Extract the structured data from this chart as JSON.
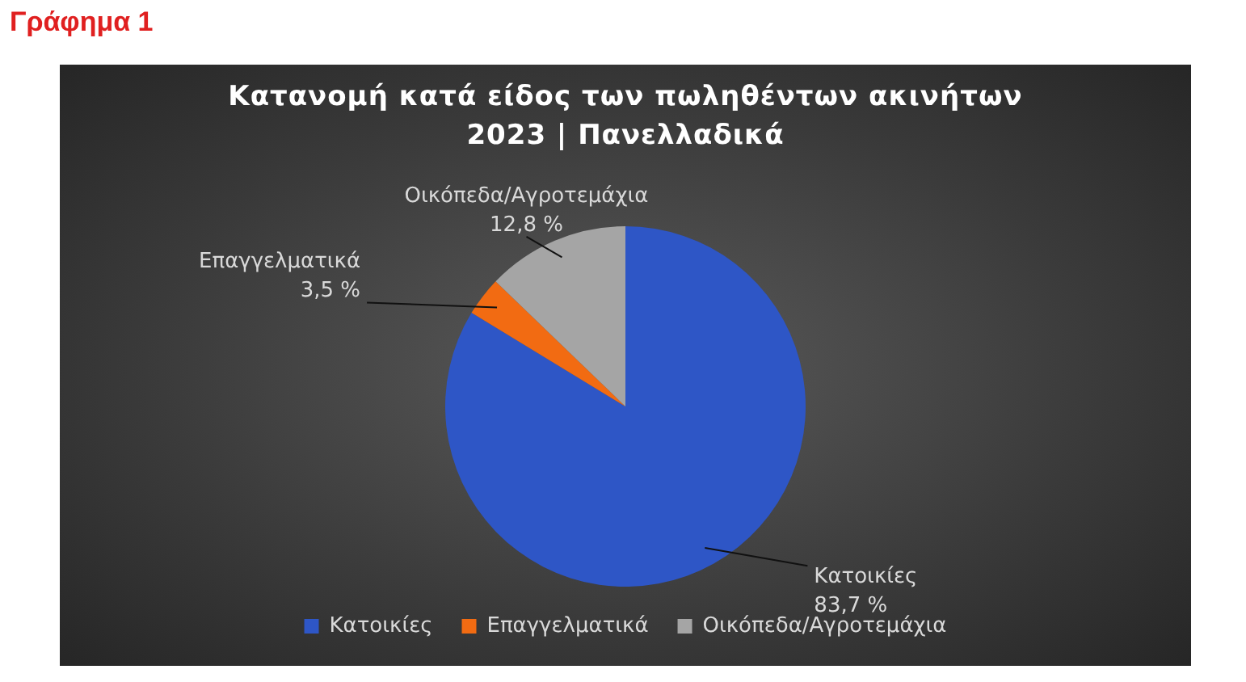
{
  "chart_data": {
    "type": "pie",
    "title": "Κατανομή κατά είδος των πωληθέντων ακινήτων 2023 | Πανελλαδικά",
    "annotations": [
      "Γράφημα 1"
    ],
    "categories": [
      "Κατοικίες",
      "Επαγγελματικά",
      "Οικόπεδα/Αγροτεμάχια"
    ],
    "values": [
      83.7,
      3.5,
      12.8
    ],
    "value_labels": [
      "83,7 %",
      "3,5 %",
      "12,8 %"
    ],
    "colors": [
      "#2e56c6",
      "#f26b12",
      "#a5a5a5"
    ],
    "legend": "bottom"
  }
}
